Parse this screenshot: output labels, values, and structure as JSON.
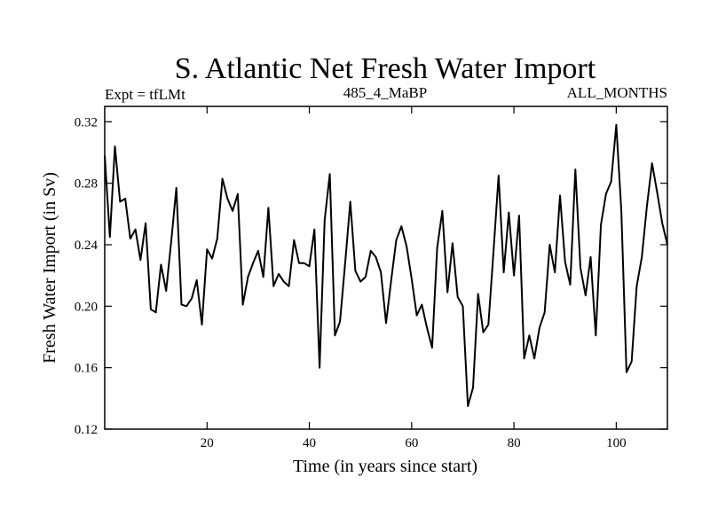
{
  "chart_data": {
    "type": "line",
    "title": "S. Atlantic Net Fresh Water Import",
    "subtitle_left": "Expt = tfLMt",
    "subtitle_center": "485_4_MaBP",
    "subtitle_right": "ALL_MONTHS",
    "xlabel": "Time (in years since start)",
    "ylabel": "Fresh Water Import (in Sv)",
    "xlim": [
      0,
      110
    ],
    "ylim": [
      0.12,
      0.33
    ],
    "x_ticks": [
      20,
      40,
      60,
      80,
      100
    ],
    "x_tick_labels": [
      "20",
      "40",
      "60",
      "80",
      "100"
    ],
    "y_ticks": [
      0.12,
      0.16,
      0.2,
      0.24,
      0.28,
      0.32
    ],
    "y_tick_labels": [
      "0.12",
      "0.16",
      "0.20",
      "0.24",
      "0.28",
      "0.32"
    ],
    "grid": false,
    "series": [
      {
        "name": "Net Fresh Water Import",
        "color": "#000000",
        "x": [
          0,
          1,
          2,
          3,
          4,
          5,
          6,
          7,
          8,
          9,
          10,
          11,
          12,
          13,
          14,
          15,
          16,
          17,
          18,
          19,
          20,
          21,
          22,
          23,
          24,
          25,
          26,
          27,
          28,
          29,
          30,
          31,
          32,
          33,
          34,
          35,
          36,
          37,
          38,
          39,
          40,
          41,
          42,
          43,
          44,
          45,
          46,
          47,
          48,
          49,
          50,
          51,
          52,
          53,
          54,
          55,
          56,
          57,
          58,
          59,
          60,
          61,
          62,
          63,
          64,
          65,
          66,
          67,
          68,
          69,
          70,
          71,
          72,
          73,
          74,
          75,
          76,
          77,
          78,
          79,
          80,
          81,
          82,
          83,
          84,
          85,
          86,
          87,
          88,
          89,
          90,
          91,
          92,
          93,
          94,
          95,
          96,
          97,
          98,
          99,
          100,
          101,
          102,
          103,
          104,
          105,
          106,
          107,
          108,
          109,
          110
        ],
        "values": [
          0.298,
          0.245,
          0.304,
          0.268,
          0.27,
          0.244,
          0.25,
          0.23,
          0.254,
          0.198,
          0.196,
          0.227,
          0.21,
          0.242,
          0.277,
          0.201,
          0.2,
          0.205,
          0.217,
          0.188,
          0.237,
          0.231,
          0.244,
          0.283,
          0.27,
          0.262,
          0.273,
          0.201,
          0.219,
          0.228,
          0.236,
          0.219,
          0.264,
          0.213,
          0.221,
          0.216,
          0.213,
          0.243,
          0.228,
          0.228,
          0.226,
          0.25,
          0.16,
          0.256,
          0.286,
          0.181,
          0.19,
          0.228,
          0.268,
          0.223,
          0.216,
          0.219,
          0.236,
          0.232,
          0.222,
          0.189,
          0.217,
          0.243,
          0.252,
          0.239,
          0.218,
          0.194,
          0.201,
          0.186,
          0.173,
          0.238,
          0.262,
          0.209,
          0.241,
          0.206,
          0.2,
          0.135,
          0.147,
          0.208,
          0.183,
          0.188,
          0.235,
          0.285,
          0.222,
          0.261,
          0.22,
          0.259,
          0.166,
          0.181,
          0.166,
          0.186,
          0.196,
          0.24,
          0.222,
          0.272,
          0.229,
          0.214,
          0.289,
          0.225,
          0.207,
          0.232,
          0.181,
          0.253,
          0.273,
          0.281,
          0.318,
          0.262,
          0.157,
          0.164,
          0.213,
          0.232,
          0.265,
          0.293,
          0.274,
          0.254,
          0.24
        ]
      }
    ]
  }
}
